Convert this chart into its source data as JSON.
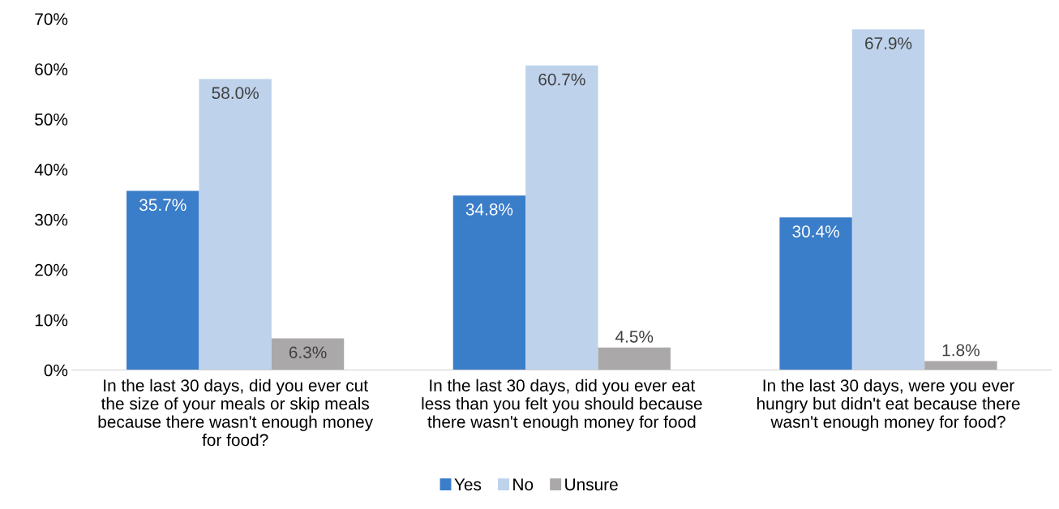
{
  "chart_data": {
    "type": "bar",
    "categories": [
      "In the last 30 days, did you ever cut\nthe size of your meals or skip meals\nbecause there wasn't enough money\nfor food?",
      "In the last 30 days, did you ever eat\nless than you felt you should because\nthere wasn't enough money for food",
      "In the last 30 days, were you ever\nhungry but didn't eat because there\nwasn't enough money for food?"
    ],
    "series": [
      {
        "name": "Yes",
        "color": "#3a7dc9",
        "values": [
          35.7,
          34.8,
          30.4
        ],
        "value_labels": [
          "35.7%",
          "34.8%",
          "30.4%"
        ]
      },
      {
        "name": "No",
        "color": "#bed2eb",
        "values": [
          58.0,
          60.7,
          67.9
        ],
        "value_labels": [
          "58.0%",
          "60.7%",
          "67.9%"
        ]
      },
      {
        "name": "Unsure",
        "color": "#aaa8a8",
        "values": [
          6.3,
          4.5,
          1.8
        ],
        "value_labels": [
          "6.3%",
          "4.5%",
          "1.8%"
        ]
      }
    ],
    "ylim": [
      0,
      70
    ],
    "yticks": [
      {
        "value": 0,
        "label": "0%"
      },
      {
        "value": 10,
        "label": "10%"
      },
      {
        "value": 20,
        "label": "20%"
      },
      {
        "value": 30,
        "label": "30%"
      },
      {
        "value": 40,
        "label": "40%"
      },
      {
        "value": 50,
        "label": "50%"
      },
      {
        "value": 60,
        "label": "60%"
      },
      {
        "value": 70,
        "label": "70%"
      }
    ],
    "legend": "bottom",
    "grid": false
  }
}
